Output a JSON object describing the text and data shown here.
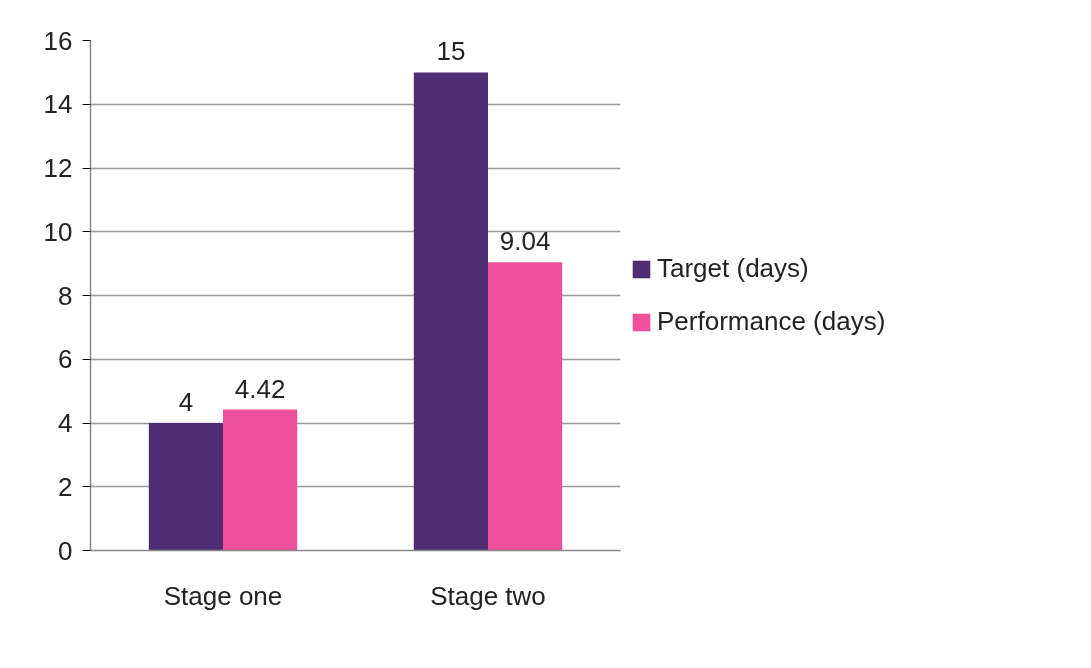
{
  "chart_data": {
    "type": "bar",
    "categories": [
      "Stage one",
      "Stage two"
    ],
    "series": [
      {
        "name": "Target (days)",
        "color": "#4f2d73",
        "values": [
          4,
          15
        ]
      },
      {
        "name": "Performance (days)",
        "color": "#ee4f9a",
        "values": [
          4.42,
          9.04
        ]
      }
    ],
    "ylim": [
      0,
      16
    ],
    "yticks": [
      0,
      2,
      4,
      6,
      8,
      10,
      12,
      14,
      16
    ],
    "grid": "y",
    "legend": "right",
    "data_labels": true
  }
}
